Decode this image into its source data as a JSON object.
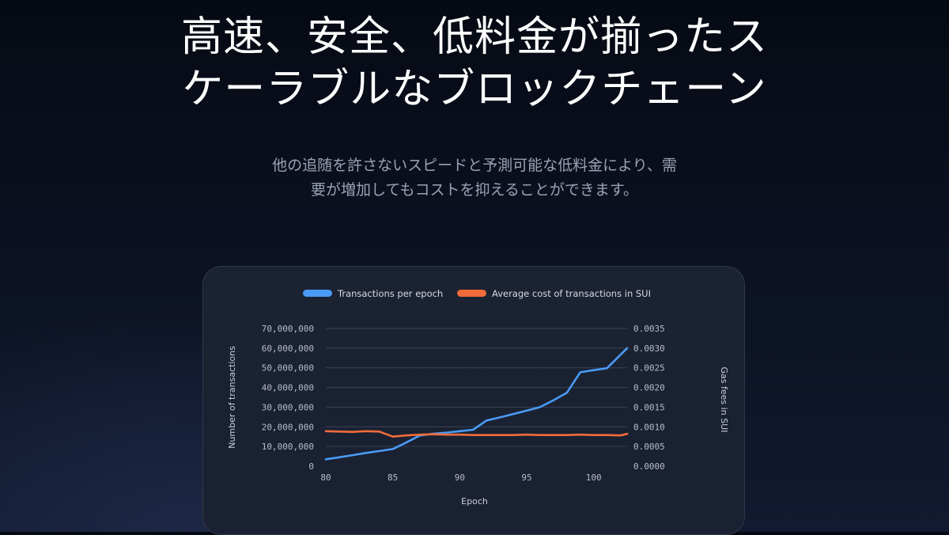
{
  "hero": {
    "title_line1": "高速、安全、低料金が揃ったス",
    "title_line2": "ケーラブルなブロックチェーン",
    "subtitle_line1": "他の追随を許さないスピードと予測可能な低料金により、需",
    "subtitle_line2": "要が増加してもコストを抑えることができます。"
  },
  "chart_data": {
    "type": "line",
    "title": "",
    "xlabel": "Epoch",
    "ylabel_left": "Number of transactions",
    "ylabel_right": "Gas fees in SUI",
    "xlim": [
      80,
      102.5
    ],
    "x_ticks": [
      80,
      85,
      90,
      95,
      100
    ],
    "x_tick_labels": [
      "80",
      "85",
      "90",
      "95",
      "100"
    ],
    "ylim_left": [
      0,
      70000000
    ],
    "y_left_ticks": [
      0,
      10000000,
      20000000,
      30000000,
      40000000,
      50000000,
      60000000,
      70000000
    ],
    "y_left_tick_labels": [
      "0",
      "10,000,000",
      "20,000,000",
      "30,000,000",
      "40,000,000",
      "50,000,000",
      "60,000,000",
      "70,000,000"
    ],
    "ylim_right": [
      0,
      0.0035
    ],
    "y_right_ticks": [
      0,
      0.0005,
      0.001,
      0.0015,
      0.002,
      0.0025,
      0.003,
      0.0035
    ],
    "y_right_tick_labels": [
      "0.0000",
      "0.0005",
      "0.0010",
      "0.0015",
      "0.0020",
      "0.0025",
      "0.0030",
      "0.0035"
    ],
    "grid": true,
    "legend_position": "top-center",
    "series": [
      {
        "name": "Transactions per epoch",
        "axis": "left",
        "color": "#4a9bf5",
        "points": [
          [
            80,
            3500000
          ],
          [
            81,
            4500000
          ],
          [
            82,
            5600000
          ],
          [
            83,
            6700000
          ],
          [
            84,
            7700000
          ],
          [
            85,
            8700000
          ],
          [
            86,
            12000000
          ],
          [
            87,
            15500000
          ],
          [
            88,
            16500000
          ],
          [
            89,
            17000000
          ],
          [
            90,
            17800000
          ],
          [
            91,
            18500000
          ],
          [
            92,
            23200000
          ],
          [
            93,
            24800000
          ],
          [
            94,
            26500000
          ],
          [
            95,
            28200000
          ],
          [
            96,
            30000000
          ],
          [
            97,
            33500000
          ],
          [
            98,
            37300000
          ],
          [
            99,
            47700000
          ],
          [
            100,
            48800000
          ],
          [
            101,
            49800000
          ],
          [
            102.5,
            60000000
          ]
        ]
      },
      {
        "name": "Average cost of transactions in SUI",
        "axis": "right",
        "color": "#f26b3a",
        "points": [
          [
            80,
            0.00089
          ],
          [
            81,
            0.00088
          ],
          [
            82,
            0.00087
          ],
          [
            83,
            0.00089
          ],
          [
            84,
            0.00088
          ],
          [
            85,
            0.00075
          ],
          [
            86,
            0.00078
          ],
          [
            87,
            0.0008
          ],
          [
            88,
            0.00081
          ],
          [
            89,
            0.0008
          ],
          [
            90,
            0.0008
          ],
          [
            91,
            0.00079
          ],
          [
            92,
            0.00079
          ],
          [
            93,
            0.00079
          ],
          [
            94,
            0.00079
          ],
          [
            95,
            0.0008
          ],
          [
            96,
            0.00079
          ],
          [
            97,
            0.00079
          ],
          [
            98,
            0.00079
          ],
          [
            99,
            0.0008
          ],
          [
            100,
            0.00079
          ],
          [
            101,
            0.00079
          ],
          [
            102,
            0.00078
          ],
          [
            102.5,
            0.00082
          ]
        ]
      }
    ]
  }
}
